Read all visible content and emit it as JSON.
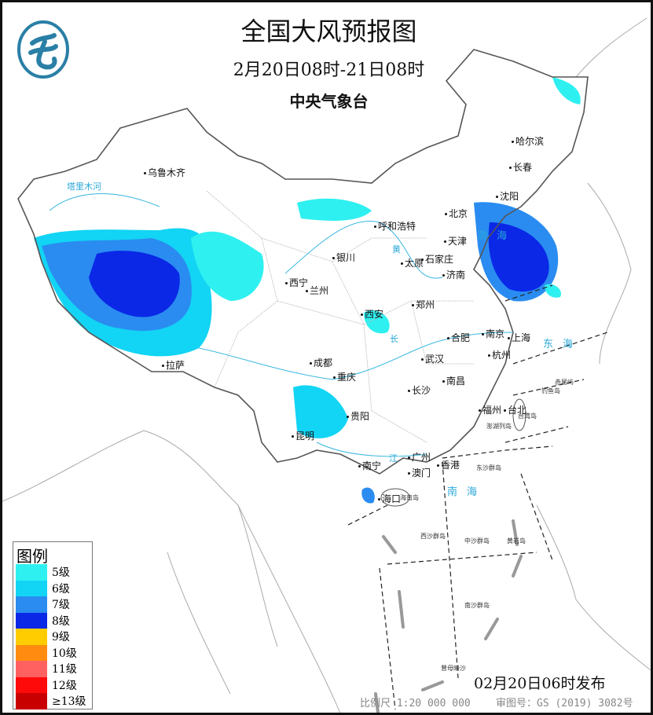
{
  "header": {
    "title": "全国大风预报图",
    "period": "2月20日08时-21日08时",
    "issuer": "中央气象台"
  },
  "logo_icon": "cma-logo-icon",
  "legend": {
    "title": "图例",
    "items": [
      {
        "label": "5级",
        "color": "#2ff0f0"
      },
      {
        "label": "6级",
        "color": "#12d4f4"
      },
      {
        "label": "7级",
        "color": "#2a8cf0"
      },
      {
        "label": "8级",
        "color": "#0a28e6"
      },
      {
        "label": "9级",
        "color": "#ffcc00"
      },
      {
        "label": "10级",
        "color": "#ff8c10"
      },
      {
        "label": "11级",
        "color": "#ff6060"
      },
      {
        "label": "12级",
        "color": "#ff0a0a"
      },
      {
        "label": "≥13级",
        "color": "#c80000"
      }
    ]
  },
  "cities": [
    "乌鲁木齐",
    "哈尔滨",
    "长春",
    "沈阳",
    "北京",
    "呼和浩特",
    "天津",
    "银川",
    "太原",
    "石家庄",
    "济南",
    "西宁",
    "兰州",
    "西安",
    "郑州",
    "南京",
    "合肥",
    "上海",
    "拉萨",
    "成都",
    "武汉",
    "杭州",
    "重庆",
    "长沙",
    "南昌",
    "福州",
    "台北",
    "贵阳",
    "昆明",
    "南宁",
    "广州",
    "香港",
    "澳门",
    "海口"
  ],
  "islands": [
    "台湾岛",
    "海南岛",
    "东沙群岛",
    "西沙群岛",
    "中沙群岛",
    "黄岩岛",
    "南沙群岛",
    "曾母暗沙",
    "赤尾屿",
    "钓鱼岛",
    "澎湖列岛"
  ],
  "seas": [
    "东海",
    "南海",
    "渤海"
  ],
  "rivers": [
    "塔里木河",
    "黄",
    "长",
    "江"
  ],
  "footer": {
    "issued": "02月20日06时发布",
    "scale": "比例尺 1:20 000 000",
    "review_number": "审图号：GS (2019) 3082号"
  }
}
